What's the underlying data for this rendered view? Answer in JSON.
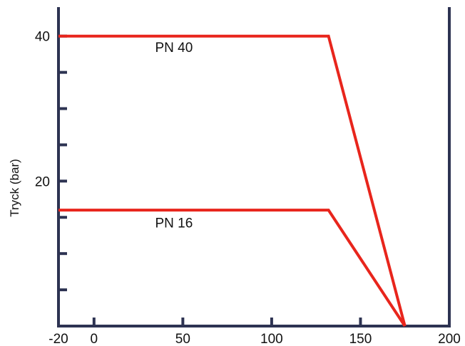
{
  "chart_data": {
    "type": "line",
    "title": "",
    "xlabel": "",
    "ylabel": "Tryck (bar)",
    "xlim": [
      -20,
      200
    ],
    "ylim": [
      0,
      44
    ],
    "x_ticks": [
      {
        "value": -20,
        "label": "-20"
      },
      {
        "value": 0,
        "label": "0"
      },
      {
        "value": 50,
        "label": "50"
      },
      {
        "value": 100,
        "label": "100"
      },
      {
        "value": 150,
        "label": "150"
      },
      {
        "value": 200,
        "label": "200"
      }
    ],
    "y_ticks_labeled": [
      {
        "value": 20,
        "label": "20"
      },
      {
        "value": 40,
        "label": "40"
      }
    ],
    "y_ticks_minor": [
      5,
      10,
      15,
      25,
      30,
      35
    ],
    "grid": false,
    "legend": "none",
    "colors": {
      "axis": "#2d3352",
      "line": "#e8251c"
    },
    "series": [
      {
        "name": "PN 40",
        "label_at": {
          "x": 45,
          "y": 37.8
        },
        "points": [
          {
            "x": -20,
            "y": 40
          },
          {
            "x": 132,
            "y": 40
          },
          {
            "x": 175,
            "y": 0
          }
        ]
      },
      {
        "name": "PN 16",
        "label_at": {
          "x": 45,
          "y": 13.6
        },
        "points": [
          {
            "x": -20,
            "y": 16
          },
          {
            "x": 132,
            "y": 16
          },
          {
            "x": 175,
            "y": 0
          }
        ]
      }
    ]
  }
}
